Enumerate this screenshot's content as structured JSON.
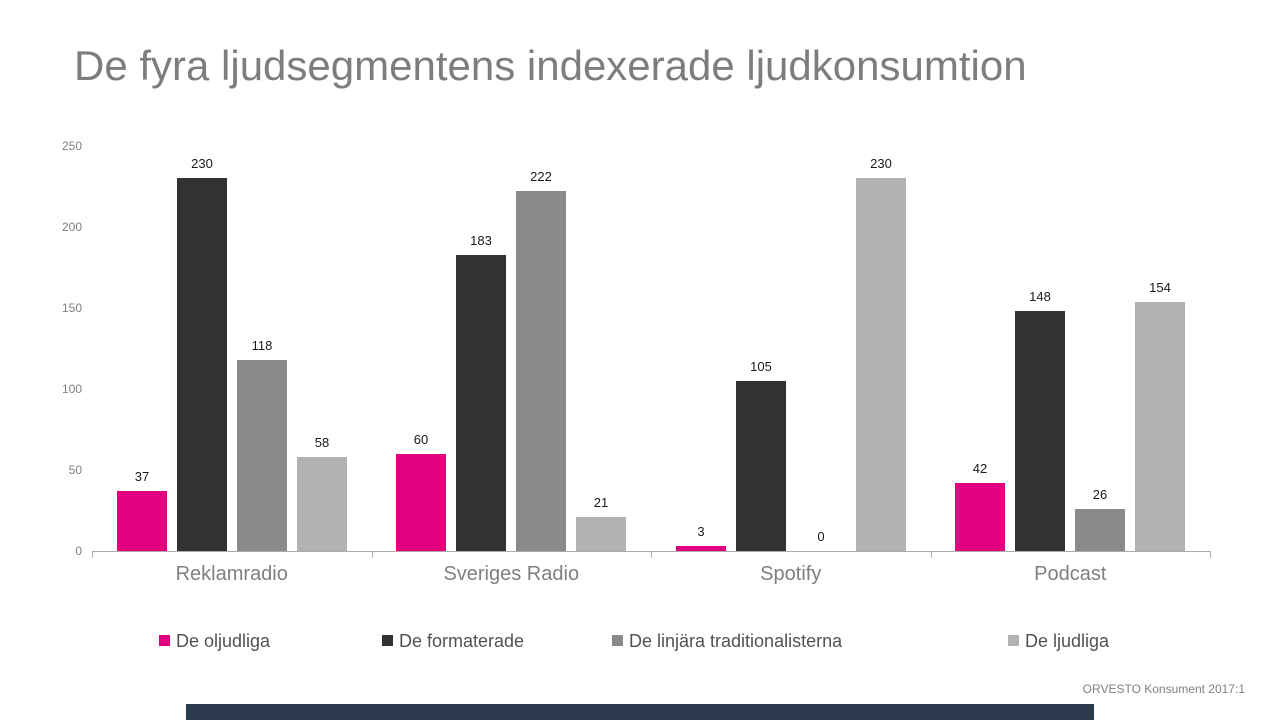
{
  "title": "De fyra ljudsegmentens indexerade ljudkonsumtion",
  "footer": {
    "source": "ORVESTO Konsument 2017:1"
  },
  "chart_data": {
    "type": "bar",
    "title": "De fyra ljudsegmentens indexerade ljudkonsumtion",
    "categories": [
      "Reklamradio",
      "Sveriges Radio",
      "Spotify",
      "Podcast"
    ],
    "series": [
      {
        "name": "De oljudliga",
        "color": "#e2017e",
        "values": [
          37,
          60,
          3,
          42
        ]
      },
      {
        "name": "De formaterade",
        "color": "#323232",
        "values": [
          230,
          183,
          105,
          148
        ]
      },
      {
        "name": "De linjära traditionalisterna",
        "color": "#8a8a8a",
        "values": [
          118,
          222,
          0,
          26
        ]
      },
      {
        "name": "De ljudliga",
        "color": "#b2b2b2",
        "values": [
          58,
          21,
          230,
          154
        ]
      }
    ],
    "xlabel": "",
    "ylabel": "",
    "ylim": [
      0,
      250
    ],
    "yticks": [
      0,
      50,
      100,
      150,
      200,
      250
    ],
    "grid": false,
    "value_labels": true,
    "legend_position": "bottom"
  },
  "colors": {
    "title_text": "#7d7d7d",
    "axis_text": "#7f7f7f",
    "category_text": "#7f7f7f",
    "value_text": "#1a1a1a",
    "legend_text": "#525252",
    "axis_line": "#ababab",
    "bottom_bar": "#2b3a4d",
    "background": "#ffffff"
  }
}
